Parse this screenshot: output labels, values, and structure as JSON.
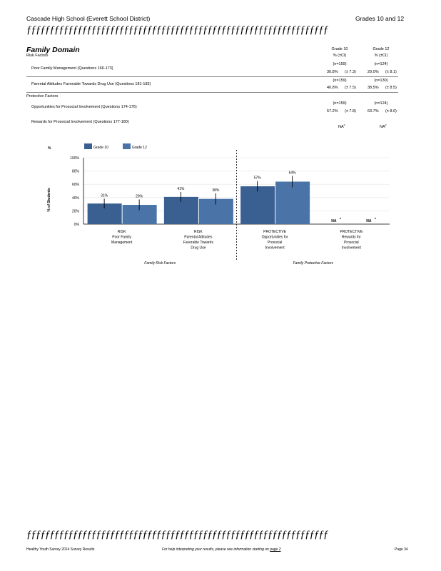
{
  "header": {
    "school": "Cascade   High   School   (Everett   School   District)",
    "grades": "Grades   10   and   12",
    "deco": "ƒƒƒƒƒƒƒƒƒƒƒƒƒƒƒƒƒƒƒƒƒƒƒƒƒƒƒƒƒƒƒƒƒƒƒƒƒƒƒƒƒƒƒƒƒƒƒƒƒƒƒƒƒƒƒƒƒƒƒƒƒƒƒƒƒ"
  },
  "domain": {
    "title": "Family   Domain",
    "risk_label": "Risk   Factors",
    "protective_label": "Protective   Factors",
    "col1": {
      "grade": "Grade   10",
      "stat": "%   (±CI)"
    },
    "col2": {
      "grade": "Grade   12",
      "stat": "%   (±CI)"
    },
    "rows": [
      {
        "label": "Poor   Family   Management        (Questions    166-173)",
        "n1": "(n=159)",
        "v1": "30.8%",
        "ci1": "(± 7.3)",
        "n2": "(n=124)",
        "v2": "29.0%",
        "ci2": "(± 8.1)"
      },
      {
        "label": "Parental   Attitudes   Favorable   Towards   Drug   Use   (Questions    181-183)",
        "n1": "(n=159)",
        "v1": "40.8%",
        "ci1": "(± 7.5)",
        "n2": "(n=130)",
        "v2": "38.5%",
        "ci2": "(± 8.5)"
      },
      {
        "label": "Opportunities     for   Prosocial   Involvement        (Questions    174-176)",
        "n1": "(n=159)",
        "v1": "57.2%",
        "ci1": "(± 7.8)",
        "n2": "(n=124)",
        "v2": "63.7%",
        "ci2": "(± 8.6)"
      },
      {
        "label": "Rewards    for   Prosocial   Involvement        (Questions    177-180)",
        "na1": "NA",
        "sup1": "c",
        "na2": "NA",
        "sup2": "c"
      }
    ]
  },
  "chart_data": {
    "type": "bar",
    "ylabel": "%   of   Students",
    "ylabel_top": "%",
    "y_ticks": [
      "100%",
      "80%",
      "60%",
      "40%",
      "20%",
      "0%"
    ],
    "ylim": [
      0,
      100
    ],
    "grid": true,
    "legend_position": "top-left",
    "series": [
      {
        "name": "Grade   10",
        "color": "#3a5f91",
        "values": [
          31,
          41,
          57,
          null
        ],
        "labels": [
          "31%",
          "41%",
          "57%",
          "NA"
        ],
        "ci": [
          7.3,
          7.5,
          7.8,
          null
        ]
      },
      {
        "name": "Grade   12",
        "color": "#4a74a8",
        "values": [
          29,
          38,
          64,
          null
        ],
        "labels": [
          "29%",
          "38%",
          "64%",
          "NA"
        ],
        "ci": [
          8.1,
          8.5,
          8.6,
          null
        ]
      }
    ],
    "na_superscript": "c",
    "categories": [
      [
        "RISK",
        "Poor   Family",
        "Management"
      ],
      [
        "RISK",
        "Parental    Attitudes",
        "Favorable     Towards",
        "Drug   Use"
      ],
      [
        "PROTECTIVE",
        "Opportunities         for",
        "Prosocial",
        "Involvement"
      ],
      [
        "PROTECTIVE",
        "Rewards        for",
        "Prosocial",
        "Involvement"
      ]
    ],
    "group_labels": [
      "Family     Risk     Factors",
      "Family     Protective     Factors"
    ]
  },
  "footer": {
    "deco": "ƒƒƒƒƒƒƒƒƒƒƒƒƒƒƒƒƒƒƒƒƒƒƒƒƒƒƒƒƒƒƒƒƒƒƒƒƒƒƒƒƒƒƒƒƒƒƒƒƒƒƒƒƒƒƒƒƒƒƒƒƒƒƒƒƒ",
    "left": "Healthy    Youth   Survey   2014   Survey    Results",
    "help": "For   help   interpreting    your   results,   please   see   information    starting   on",
    "page_link": "page   2",
    "page": "Page    34"
  }
}
